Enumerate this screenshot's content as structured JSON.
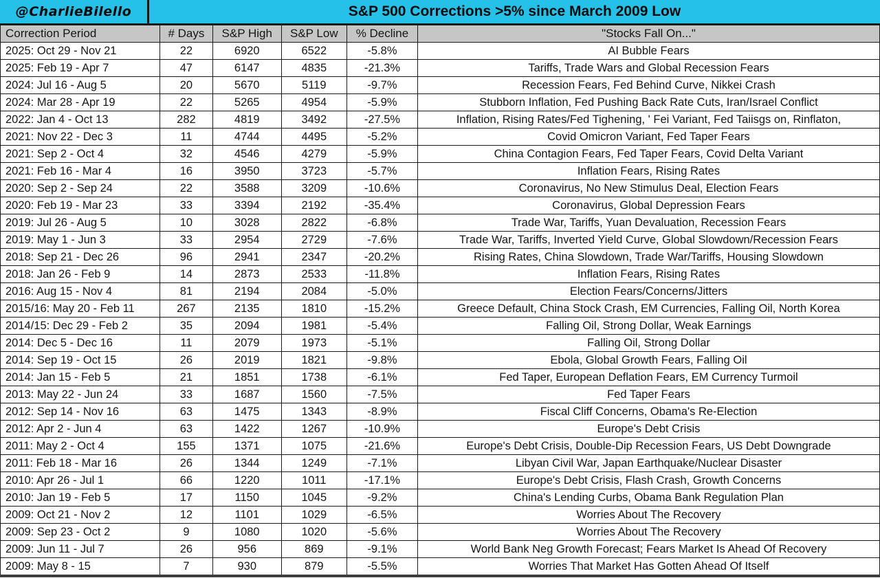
{
  "header": {
    "author": "@CharlieBilello",
    "title": "S&P 500 Corrections >5% since March 2009 Low"
  },
  "colors": {
    "banner_cyan": "#25c1e8",
    "column_header_gray": "#c6c6c6",
    "border_black": "#1a1a1a",
    "text_black": "#161616"
  },
  "chart_data": {
    "type": "table",
    "title": "S&P 500 Corrections >5% since March 2009 Low",
    "author": "@CharlieBilello",
    "columns": [
      "Correction Period",
      "# Days",
      "S&P High",
      "S&P Low",
      "% Decline",
      "\"Stocks Fall On...\""
    ],
    "rows": [
      [
        "2025: Oct 29 - Nov 21",
        "22",
        "6920",
        "6522",
        "-5.8%",
        "AI Bubble Fears"
      ],
      [
        "2025: Feb 19 - Apr 7",
        "47",
        "6147",
        "4835",
        "-21.3%",
        "Tariffs, Trade Wars and Global Recession Fears"
      ],
      [
        "2024: Jul 16 - Aug 5",
        "20",
        "5670",
        "5119",
        "-9.7%",
        "Recession Fears, Fed Behind Curve, Nikkei Crash"
      ],
      [
        "2024: Mar 28 - Apr 19",
        "22",
        "5265",
        "4954",
        "-5.9%",
        "Stubborn Inflation, Fed Pushing Back Rate Cuts, Iran/Israel Conflict"
      ],
      [
        "2022: Jan 4 - Oct 13",
        "282",
        "4819",
        "3492",
        "-27.5%",
        "Inflation, Rising Rates/Fed Tighening, ' Fei Variant, Fed Taiisgs on, Rinflaton,"
      ],
      [
        "2021: Nov 22 - Dec 3",
        "11",
        "4744",
        "4495",
        "-5.2%",
        "Covid Omicron Variant, Fed Taper Fears"
      ],
      [
        "2021: Sep 2 - Oct 4",
        "32",
        "4546",
        "4279",
        "-5.9%",
        "China Contagion Fears, Fed Taper Fears, Covid Delta Variant"
      ],
      [
        "2021: Feb 16 - Mar 4",
        "16",
        "3950",
        "3723",
        "-5.7%",
        "Inflation Fears, Rising Rates"
      ],
      [
        "2020: Sep 2 - Sep 24",
        "22",
        "3588",
        "3209",
        "-10.6%",
        "Coronavirus, No New Stimulus Deal, Election Fears"
      ],
      [
        "2020: Feb 19 - Mar 23",
        "33",
        "3394",
        "2192",
        "-35.4%",
        "Coronavirus, Global Depression Fears"
      ],
      [
        "2019: Jul 26 - Aug 5",
        "10",
        "3028",
        "2822",
        "-6.8%",
        "Trade War, Tariffs, Yuan Devaluation, Recession Fears"
      ],
      [
        "2019: May 1 - Jun 3",
        "33",
        "2954",
        "2729",
        "-7.6%",
        "Trade War, Tariffs, Inverted Yield Curve, Global Slowdown/Recession Fears"
      ],
      [
        "2018: Sep 21 - Dec 26",
        "96",
        "2941",
        "2347",
        "-20.2%",
        "Rising Rates, China Slowdown, Trade War/Tariffs, Housing Slowdown"
      ],
      [
        "2018: Jan 26 - Feb 9",
        "14",
        "2873",
        "2533",
        "-11.8%",
        "Inflation Fears, Rising Rates"
      ],
      [
        "2016: Aug 15 - Nov 4",
        "81",
        "2194",
        "2084",
        "-5.0%",
        "Election Fears/Concerns/Jitters"
      ],
      [
        "2015/16: May 20 - Feb 11",
        "267",
        "2135",
        "1810",
        "-15.2%",
        "Greece Default, China Stock Crash, EM Currencies, Falling Oil, North Korea"
      ],
      [
        "2014/15: Dec 29 - Feb 2",
        "35",
        "2094",
        "1981",
        "-5.4%",
        "Falling Oil, Strong Dollar, Weak Earnings"
      ],
      [
        "2014: Dec 5 - Dec 16",
        "11",
        "2079",
        "1973",
        "-5.1%",
        "Falling Oil, Strong Dollar"
      ],
      [
        "2014: Sep 19 - Oct 15",
        "26",
        "2019",
        "1821",
        "-9.8%",
        "Ebola, Global Growth Fears, Falling Oil"
      ],
      [
        "2014: Jan 15 - Feb 5",
        "21",
        "1851",
        "1738",
        "-6.1%",
        "Fed Taper, European Deflation Fears, EM Currency Turmoil"
      ],
      [
        "2013: May 22 - Jun 24",
        "33",
        "1687",
        "1560",
        "-7.5%",
        "Fed Taper Fears"
      ],
      [
        "2012: Sep 14 - Nov 16",
        "63",
        "1475",
        "1343",
        "-8.9%",
        "Fiscal Cliff Concerns, Obama's Re-Election"
      ],
      [
        "2012: Apr 2 - Jun 4",
        "63",
        "1422",
        "1267",
        "-10.9%",
        "Europe's Debt Crisis"
      ],
      [
        "2011: May 2 - Oct 4",
        "155",
        "1371",
        "1075",
        "-21.6%",
        "Europe's Debt Crisis, Double-Dip Recession Fears, US Debt Downgrade"
      ],
      [
        "2011: Feb 18 - Mar 16",
        "26",
        "1344",
        "1249",
        "-7.1%",
        "Libyan Civil War, Japan Earthquake/Nuclear Disaster"
      ],
      [
        "2010: Apr 26 - Jul 1",
        "66",
        "1220",
        "1011",
        "-17.1%",
        "Europe's Debt Crisis, Flash Crash, Growth Concerns"
      ],
      [
        "2010: Jan 19 - Feb 5",
        "17",
        "1150",
        "1045",
        "-9.2%",
        "China's Lending Curbs, Obama Bank Regulation Plan"
      ],
      [
        "2009: Oct 21 - Nov 2",
        "12",
        "1101",
        "1029",
        "-6.5%",
        "Worries About The Recovery"
      ],
      [
        "2009: Sep 23 - Oct 2",
        "9",
        "1080",
        "1020",
        "-5.6%",
        "Worries About The Recovery"
      ],
      [
        "2009: Jun 11 - Jul 7",
        "26",
        "956",
        "869",
        "-9.1%",
        "World Bank Neg Growth Forecast; Fears Market Is Ahead Of Recovery"
      ],
      [
        "2009: May 8 - 15",
        "7",
        "930",
        "879",
        "-5.5%",
        "Worries That Market Has Gotten Ahead Of Itself"
      ]
    ]
  }
}
